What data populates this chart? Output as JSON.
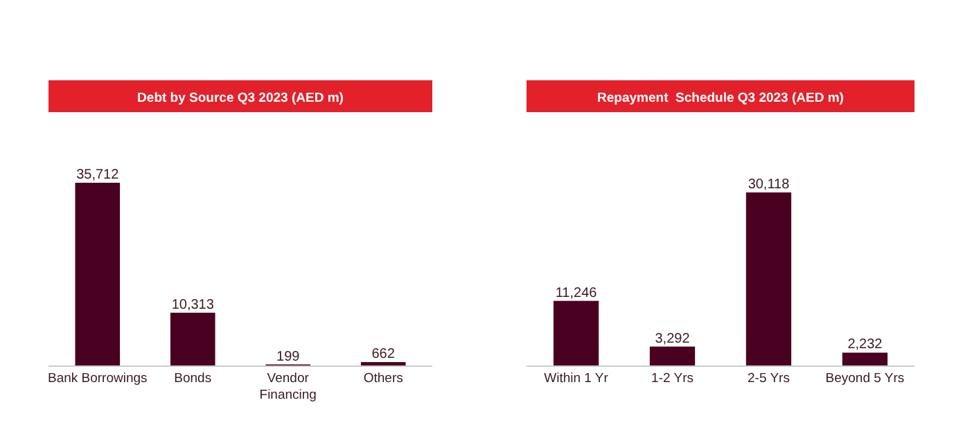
{
  "chart_data": [
    {
      "type": "bar",
      "title": "Debt by Source Q3 2023 (AED m)",
      "categories": [
        "Bank Borrowings",
        "Bonds",
        "Vendor Financing",
        "Others"
      ],
      "values": [
        35712,
        10313,
        199,
        662
      ],
      "color": "#4a0020",
      "value_labels": [
        "35,712",
        "10,313",
        "199",
        "662"
      ]
    },
    {
      "type": "bar",
      "title": "Repayment  Schedule Q3 2023 (AED m)",
      "categories": [
        "Within 1 Yr",
        "1-2 Yrs",
        "2-5 Yrs",
        "Beyond 5 Yrs"
      ],
      "values": [
        11246,
        3292,
        30118,
        2232
      ],
      "color": "#4a0020",
      "value_labels": [
        "11,246",
        "3,292",
        "30,118",
        "2,232"
      ]
    }
  ]
}
